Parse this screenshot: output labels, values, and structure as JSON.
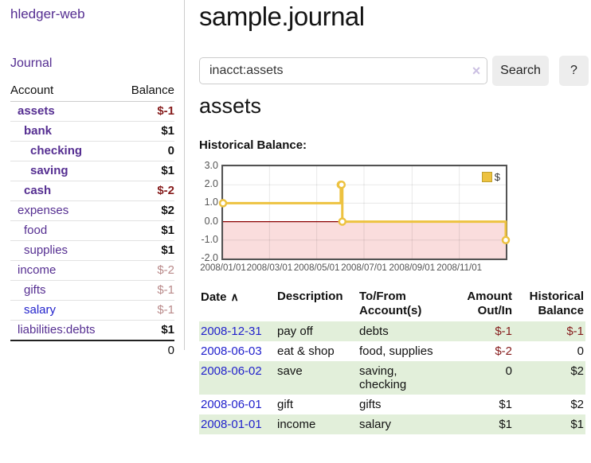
{
  "sidebar": {
    "brand": "hledger-web",
    "nav_journal": "Journal",
    "accounts_table": {
      "headers": [
        "Account",
        "Balance"
      ],
      "rows": [
        {
          "name": "assets",
          "balance": "$-1",
          "depth": 1,
          "bold": true,
          "balance_style": "negative-strong",
          "link_color": "purple"
        },
        {
          "name": "bank",
          "balance": "$1",
          "depth": 2,
          "bold": true,
          "balance_style": "normal",
          "link_color": "purple"
        },
        {
          "name": "checking",
          "balance": "0",
          "depth": 3,
          "bold": true,
          "balance_style": "normal",
          "link_color": "purple"
        },
        {
          "name": "saving",
          "balance": "$1",
          "depth": 3,
          "bold": true,
          "balance_style": "normal",
          "link_color": "purple"
        },
        {
          "name": "cash",
          "balance": "$-2",
          "depth": 2,
          "bold": true,
          "balance_style": "negative-strong",
          "link_color": "purple"
        },
        {
          "name": "expenses",
          "balance": "$2",
          "depth": 1,
          "bold": false,
          "balance_style": "normal",
          "link_color": "purple"
        },
        {
          "name": "food",
          "balance": "$1",
          "depth": 2,
          "bold": false,
          "balance_style": "normal",
          "link_color": "purple"
        },
        {
          "name": "supplies",
          "balance": "$1",
          "depth": 2,
          "bold": false,
          "balance_style": "normal",
          "link_color": "purple"
        },
        {
          "name": "income",
          "balance": "$-2",
          "depth": 1,
          "bold": false,
          "balance_style": "negative-muted",
          "link_color": "purple"
        },
        {
          "name": "gifts",
          "balance": "$-1",
          "depth": 2,
          "bold": false,
          "balance_style": "negative-muted",
          "link_color": "purple"
        },
        {
          "name": "salary",
          "balance": "$-1",
          "depth": 2,
          "bold": false,
          "balance_style": "negative-muted",
          "link_color": "blue"
        },
        {
          "name": "liabilities:debts",
          "balance": "$1",
          "depth": 1,
          "bold": false,
          "balance_style": "normal",
          "link_color": "purple"
        }
      ],
      "total": "0"
    }
  },
  "main": {
    "title": "sample.journal",
    "search": {
      "value": "inacct:assets",
      "clear_icon": "×",
      "button_label": "Search",
      "help_label": "?"
    },
    "account_heading": "assets",
    "chart_heading": "Historical Balance:",
    "transactions": {
      "columns": [
        {
          "label": "Date",
          "sorted": "ascending"
        },
        {
          "label": "Description"
        },
        {
          "label": "To/From Account(s)"
        },
        {
          "label": "Amount Out/In"
        },
        {
          "label": "Historical Balance"
        }
      ],
      "sort_icon": "∧",
      "rows": [
        {
          "date": "2008-12-31",
          "description": "pay off",
          "accounts": "debts",
          "amount": "$-1",
          "amount_negative": true,
          "balance": "$-1",
          "balance_negative": true
        },
        {
          "date": "2008-06-03",
          "description": "eat & shop",
          "accounts": "food, supplies",
          "amount": "$-2",
          "amount_negative": true,
          "balance": "0",
          "balance_negative": false
        },
        {
          "date": "2008-06-02",
          "description": "save",
          "accounts": "saving, checking",
          "amount": "0",
          "amount_negative": false,
          "balance": "$2",
          "balance_negative": false
        },
        {
          "date": "2008-06-01",
          "description": "gift",
          "accounts": "gifts",
          "amount": "$1",
          "amount_negative": false,
          "balance": "$2",
          "balance_negative": false
        },
        {
          "date": "2008-01-01",
          "description": "income",
          "accounts": "salary",
          "amount": "$1",
          "amount_negative": false,
          "balance": "$1",
          "balance_negative": false
        }
      ]
    }
  },
  "chart_data": {
    "type": "line",
    "title": "Historical Balance",
    "step": true,
    "legend": [
      {
        "label": "$",
        "color": "#edc240"
      }
    ],
    "legend_position": "top-right",
    "grid": true,
    "xlim_days": [
      0,
      365
    ],
    "ylim": [
      -2,
      3
    ],
    "x_ticks": [
      {
        "day": 0,
        "label": "2008/01/01"
      },
      {
        "day": 60,
        "label": "2008/03/01"
      },
      {
        "day": 121,
        "label": "2008/05/01"
      },
      {
        "day": 182,
        "label": "2008/07/01"
      },
      {
        "day": 244,
        "label": "2008/09/01"
      },
      {
        "day": 305,
        "label": "2008/11/01"
      }
    ],
    "y_ticks": [
      {
        "value": 3,
        "label": "3.0"
      },
      {
        "value": 2,
        "label": "2.0"
      },
      {
        "value": 1,
        "label": "1.0"
      },
      {
        "value": 0,
        "label": "0.0"
      },
      {
        "value": -1,
        "label": "-1.0"
      },
      {
        "value": -2,
        "label": "-2.0"
      }
    ],
    "series": [
      {
        "name": "$",
        "color": "#edc240",
        "points": [
          {
            "date": "2008-01-01",
            "day": 0,
            "value": 1
          },
          {
            "date": "2008-06-01",
            "day": 152,
            "value": 2
          },
          {
            "date": "2008-06-02",
            "day": 153,
            "value": 2
          },
          {
            "date": "2008-06-03",
            "day": 154,
            "value": 0
          },
          {
            "date": "2008-12-31",
            "day": 365,
            "value": -1
          }
        ]
      }
    ],
    "colors": {
      "negative_region": "#fadddd",
      "zero_line": "#8b0000",
      "grid_line": "rgba(0,0,0,0.09)",
      "border": "#545454",
      "marker_fill": "#ffffff"
    }
  }
}
